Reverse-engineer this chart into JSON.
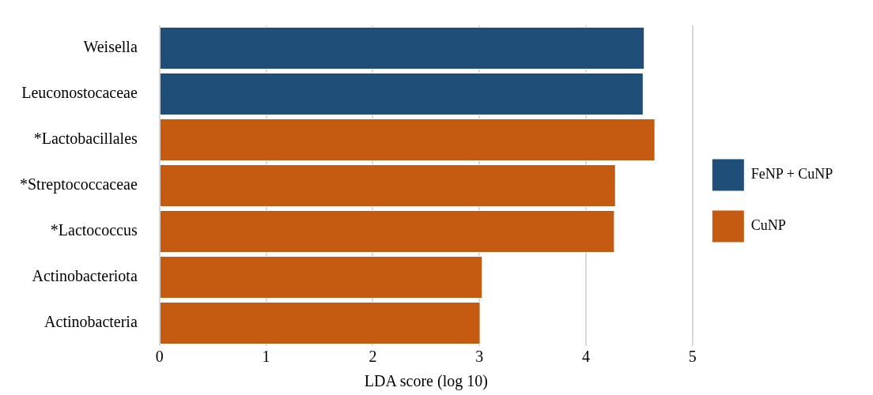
{
  "chart_data": {
    "type": "bar",
    "orientation": "horizontal",
    "xlabel": "LDA score (log 10)",
    "categories": [
      "Weisella",
      "Leuconostocaceae",
      "*Lactobacillales",
      "*Streptococcaceae",
      "*Lactococcus",
      "Actinobacteriota",
      "Actinobacteria"
    ],
    "series": [
      {
        "name": "FeNP + CuNP",
        "color": "#1f4e79",
        "values": [
          4.55,
          4.54,
          null,
          null,
          null,
          null,
          null
        ]
      },
      {
        "name": "CuNP",
        "color": "#c55a11",
        "values": [
          null,
          null,
          4.65,
          4.28,
          4.27,
          3.03,
          3.01
        ]
      }
    ],
    "xlim": [
      0,
      5
    ],
    "xticks": [
      0,
      1,
      2,
      3,
      4,
      5
    ],
    "grid": "x",
    "legend": "right"
  }
}
